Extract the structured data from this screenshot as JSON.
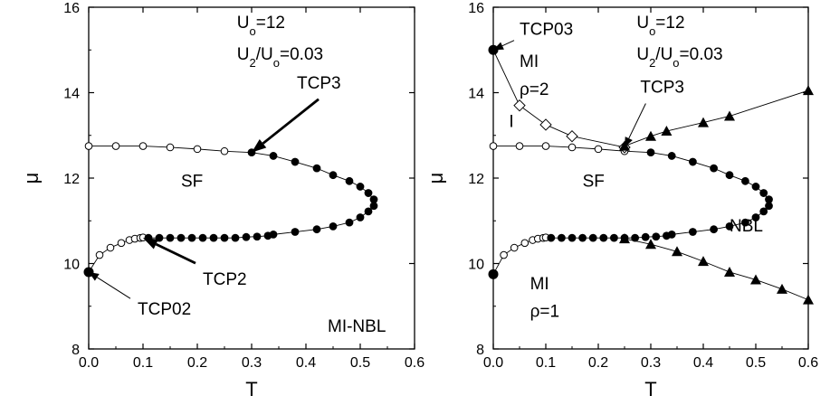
{
  "chart_data": [
    {
      "type": "scatter",
      "panel": "left",
      "xlabel": "T",
      "ylabel": "μ",
      "xlim": [
        0.0,
        0.6
      ],
      "ylim": [
        8,
        16
      ],
      "xticks": [
        "0.0",
        "0.1",
        "0.2",
        "0.3",
        "0.4",
        "0.5",
        "0.6"
      ],
      "yticks": [
        "8",
        "10",
        "12",
        "14",
        "16"
      ],
      "params": [
        "U₀=12",
        "U₂/U₀=0.03"
      ],
      "series": [
        {
          "marker": "open-circle",
          "points": [
            [
              0.0,
              12.75
            ],
            [
              0.05,
              12.75
            ],
            [
              0.1,
              12.75
            ],
            [
              0.15,
              12.72
            ],
            [
              0.2,
              12.68
            ],
            [
              0.25,
              12.63
            ],
            [
              0.02,
              10.2
            ],
            [
              0.04,
              10.37
            ],
            [
              0.06,
              10.48
            ],
            [
              0.075,
              10.55
            ],
            [
              0.085,
              10.58
            ],
            [
              0.095,
              10.6
            ],
            [
              0.1,
              10.61
            ]
          ]
        },
        {
          "marker": "filled-circle",
          "points": [
            [
              0.0,
              9.8
            ],
            [
              0.3,
              12.6
            ],
            [
              0.34,
              12.52
            ],
            [
              0.38,
              12.38
            ],
            [
              0.42,
              12.23
            ],
            [
              0.45,
              12.07
            ],
            [
              0.48,
              11.93
            ],
            [
              0.5,
              11.8
            ],
            [
              0.515,
              11.65
            ],
            [
              0.525,
              11.5
            ],
            [
              0.525,
              11.35
            ],
            [
              0.515,
              11.22
            ],
            [
              0.5,
              11.08
            ],
            [
              0.48,
              10.96
            ],
            [
              0.45,
              10.87
            ],
            [
              0.42,
              10.8
            ],
            [
              0.38,
              10.74
            ],
            [
              0.34,
              10.68
            ],
            [
              0.11,
              10.6
            ],
            [
              0.13,
              10.6
            ],
            [
              0.15,
              10.6
            ],
            [
              0.17,
              10.6
            ],
            [
              0.19,
              10.6
            ],
            [
              0.21,
              10.6
            ],
            [
              0.23,
              10.6
            ],
            [
              0.25,
              10.6
            ],
            [
              0.27,
              10.6
            ],
            [
              0.29,
              10.62
            ],
            [
              0.31,
              10.63
            ],
            [
              0.33,
              10.65
            ]
          ]
        }
      ],
      "annotations": [
        {
          "text": "TCP3",
          "arrow_to": [
            0.3,
            12.6
          ],
          "label_at": [
            0.42,
            14.1
          ],
          "arrow": "bold"
        },
        {
          "text": "TCP2",
          "arrow_to": [
            0.1,
            10.6
          ],
          "label_at": [
            0.21,
            9.5
          ],
          "arrow": "bold"
        },
        {
          "text": "TCP02",
          "arrow_to": [
            0.0,
            9.8
          ],
          "label_at": [
            0.09,
            8.8
          ],
          "arrow": "thin"
        },
        {
          "text": "SF",
          "at": [
            0.17,
            11.8
          ]
        },
        {
          "text": "MI-NBL",
          "at": [
            0.44,
            8.4
          ]
        }
      ]
    },
    {
      "type": "scatter",
      "panel": "right",
      "xlabel": "T",
      "ylabel": "μ",
      "xlim": [
        0.0,
        0.6
      ],
      "ylim": [
        8,
        16
      ],
      "xticks": [
        "0.0",
        "0.1",
        "0.2",
        "0.3",
        "0.4",
        "0.5",
        "0.6"
      ],
      "yticks": [
        "8",
        "10",
        "12",
        "14",
        "16"
      ],
      "params": [
        "U₀=12",
        "U₂/U₀=0.03"
      ],
      "series": [
        {
          "marker": "open-circle",
          "points": [
            [
              0.0,
              12.75
            ],
            [
              0.05,
              12.75
            ],
            [
              0.1,
              12.75
            ],
            [
              0.15,
              12.72
            ],
            [
              0.2,
              12.68
            ],
            [
              0.25,
              12.63
            ],
            [
              0.02,
              10.2
            ],
            [
              0.04,
              10.37
            ],
            [
              0.06,
              10.48
            ],
            [
              0.075,
              10.55
            ],
            [
              0.085,
              10.58
            ],
            [
              0.095,
              10.6
            ],
            [
              0.1,
              10.61
            ]
          ]
        },
        {
          "marker": "filled-circle",
          "points": [
            [
              0.0,
              9.75
            ],
            [
              0.0,
              15.0
            ],
            [
              0.3,
              12.6
            ],
            [
              0.34,
              12.52
            ],
            [
              0.38,
              12.38
            ],
            [
              0.42,
              12.23
            ],
            [
              0.45,
              12.07
            ],
            [
              0.48,
              11.93
            ],
            [
              0.5,
              11.8
            ],
            [
              0.515,
              11.65
            ],
            [
              0.525,
              11.5
            ],
            [
              0.525,
              11.35
            ],
            [
              0.515,
              11.22
            ],
            [
              0.5,
              11.08
            ],
            [
              0.48,
              10.96
            ],
            [
              0.45,
              10.87
            ],
            [
              0.42,
              10.8
            ],
            [
              0.38,
              10.74
            ],
            [
              0.34,
              10.68
            ],
            [
              0.11,
              10.6
            ],
            [
              0.13,
              10.6
            ],
            [
              0.15,
              10.6
            ],
            [
              0.17,
              10.6
            ],
            [
              0.19,
              10.6
            ],
            [
              0.21,
              10.6
            ],
            [
              0.23,
              10.6
            ],
            [
              0.25,
              10.6
            ],
            [
              0.27,
              10.6
            ],
            [
              0.29,
              10.62
            ],
            [
              0.31,
              10.63
            ],
            [
              0.33,
              10.65
            ]
          ]
        },
        {
          "marker": "open-diamond",
          "points": [
            [
              0.05,
              13.7
            ],
            [
              0.1,
              13.25
            ],
            [
              0.15,
              12.98
            ],
            [
              0.25,
              12.72
            ]
          ]
        },
        {
          "marker": "filled-triangle",
          "points": [
            [
              0.25,
              12.75
            ],
            [
              0.3,
              12.98
            ],
            [
              0.33,
              13.1
            ],
            [
              0.4,
              13.3
            ],
            [
              0.45,
              13.45
            ],
            [
              0.6,
              14.05
            ],
            [
              0.25,
              10.58
            ],
            [
              0.3,
              10.45
            ],
            [
              0.35,
              10.28
            ],
            [
              0.4,
              10.05
            ],
            [
              0.45,
              9.8
            ],
            [
              0.5,
              9.62
            ],
            [
              0.55,
              9.4
            ],
            [
              0.6,
              9.15
            ]
          ]
        }
      ],
      "annotations": [
        {
          "text": "TCP03",
          "arrow_to": [
            0.0,
            15.0
          ],
          "label_at": [
            0.05,
            15.35
          ],
          "arrow": "thin"
        },
        {
          "text": "TCP3",
          "arrow_to": [
            0.25,
            12.72
          ],
          "label_at": [
            0.28,
            14.0
          ],
          "arrow": "thin"
        },
        {
          "text": "MI",
          "at": [
            0.05,
            14.6
          ]
        },
        {
          "text": "ρ=2",
          "at": [
            0.05,
            13.95
          ]
        },
        {
          "text": "I",
          "at": [
            0.03,
            13.2
          ]
        },
        {
          "text": "SF",
          "at": [
            0.17,
            11.8
          ]
        },
        {
          "text": "NBL",
          "at": [
            0.45,
            10.75
          ]
        },
        {
          "text": "MI",
          "at": [
            0.07,
            9.4
          ]
        },
        {
          "text": "ρ=1",
          "at": [
            0.07,
            8.75
          ]
        }
      ]
    }
  ]
}
